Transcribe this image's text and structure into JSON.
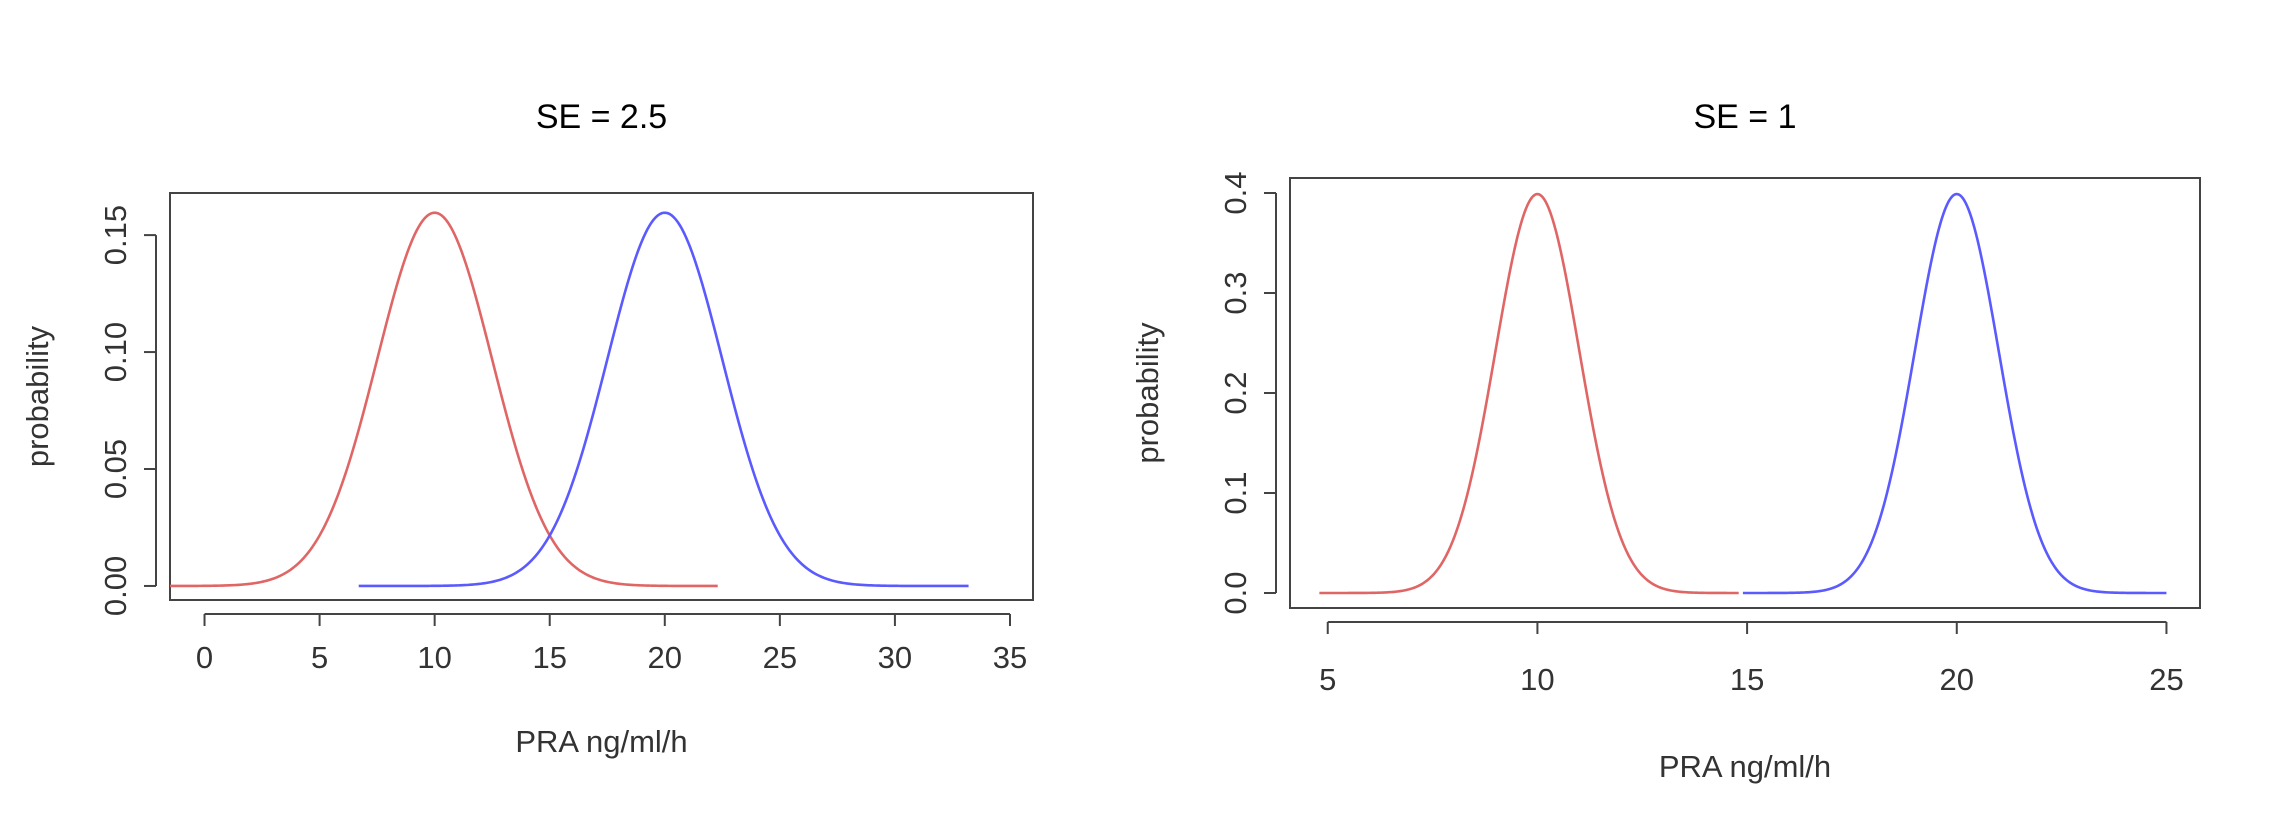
{
  "chart_data": [
    {
      "type": "line",
      "title": "SE = 2.5",
      "xlabel": "PRA ng/ml/h",
      "ylabel": "probability",
      "xlim": [
        -1.5,
        36
      ],
      "ylim": [
        -0.006,
        0.168
      ],
      "xticks": [
        0,
        5,
        10,
        15,
        20,
        25,
        30,
        35
      ],
      "yticks": [
        0.0,
        0.05,
        0.1,
        0.15
      ],
      "ytick_labels": [
        "0.00",
        "0.05",
        "0.10",
        "0.15"
      ],
      "grid": false,
      "series": [
        {
          "color": "#e06666",
          "distribution": "normal",
          "mean": 10,
          "sd": 2.5,
          "x_range": [
            -1.5,
            22.3
          ]
        },
        {
          "color": "#5a5aff",
          "distribution": "normal",
          "mean": 20,
          "sd": 2.5,
          "x_range": [
            6.7,
            33.2
          ]
        }
      ]
    },
    {
      "type": "line",
      "title": "SE = 1",
      "xlabel": "PRA ng/ml/h",
      "ylabel": "probability",
      "xlim": [
        4.1,
        25.8
      ],
      "ylim": [
        -0.015,
        0.415
      ],
      "xticks": [
        5,
        10,
        15,
        20,
        25
      ],
      "yticks": [
        0.0,
        0.1,
        0.2,
        0.3,
        0.4
      ],
      "ytick_labels": [
        "0.0",
        "0.1",
        "0.2",
        "0.3",
        "0.4"
      ],
      "grid": false,
      "series": [
        {
          "color": "#e06666",
          "distribution": "normal",
          "mean": 10,
          "sd": 1,
          "x_range": [
            4.8,
            14.8
          ]
        },
        {
          "color": "#5a5aff",
          "distribution": "normal",
          "mean": 20,
          "sd": 1,
          "x_range": [
            14.9,
            25.0
          ]
        }
      ]
    }
  ]
}
